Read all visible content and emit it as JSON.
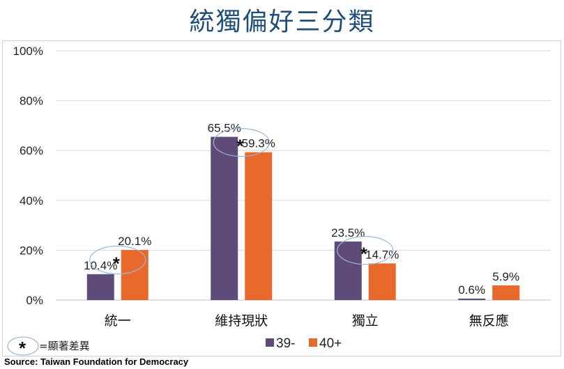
{
  "chart_data": {
    "type": "bar",
    "title": "統獨偏好三分類",
    "categories": [
      "統一",
      "維持現狀",
      "獨立",
      "無反應"
    ],
    "series": [
      {
        "name": "39-",
        "values": [
          10.4,
          65.5,
          23.5,
          0.6
        ],
        "labels": [
          "10.4%",
          "65.5%",
          "23.5%",
          "0.6%"
        ],
        "color": "#5f4b7a"
      },
      {
        "name": "40+",
        "values": [
          20.1,
          59.3,
          14.7,
          5.9
        ],
        "labels": [
          "20.1%",
          "59.3%",
          "14.7%",
          "5.9%"
        ],
        "color": "#e8692b"
      }
    ],
    "ylim": [
      0,
      100
    ],
    "yticks": [
      "0%",
      "20%",
      "40%",
      "60%",
      "80%",
      "100%"
    ],
    "grid": true,
    "legend_position": "bottom",
    "significance": {
      "marker": "*",
      "categories": [
        "統一",
        "維持現狀",
        "獨立"
      ],
      "note": "=顯著差異"
    }
  },
  "source": "Source: Taiwan Foundation for Democracy"
}
